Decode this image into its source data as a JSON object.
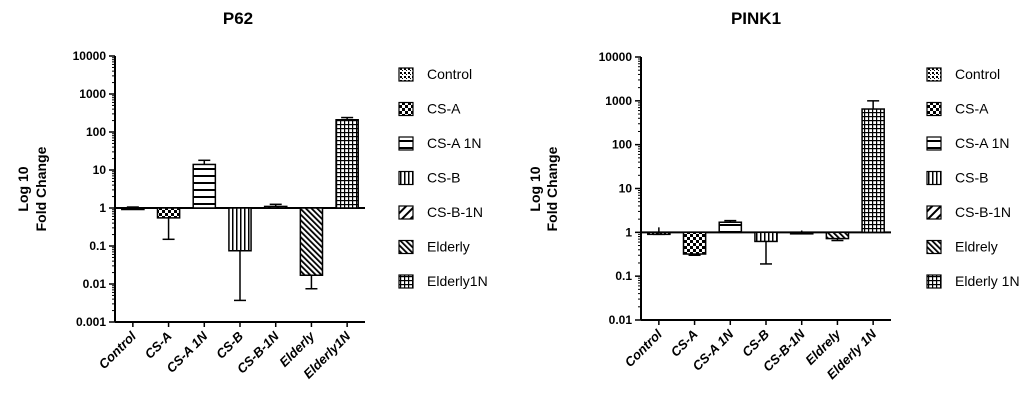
{
  "chart_data": [
    {
      "type": "bar",
      "title": "P62",
      "ylabel_lines": [
        "Log 10",
        "Fold Change"
      ],
      "yscale": "log",
      "ylim": [
        0.001,
        10000
      ],
      "yticks": [
        "0.001",
        "0.01",
        "0.1",
        "1",
        "10",
        "100",
        "1000",
        "10000"
      ],
      "categories": [
        "Control",
        "CS-A",
        "CS-A 1N",
        "CS-B",
        "CS-B-1N",
        "Elderly",
        "Elderly1N"
      ],
      "values": [
        1.0,
        0.55,
        14,
        0.075,
        1.1,
        0.017,
        210
      ],
      "error": [
        [
          1.0,
          1.06
        ],
        [
          0.15,
          0.55
        ],
        [
          14,
          18
        ],
        [
          0.0037,
          0.075
        ],
        [
          1.1,
          1.25
        ],
        [
          0.0075,
          0.017
        ],
        [
          210,
          240
        ]
      ],
      "legend": [
        "Control",
        "CS-A",
        "CS-A 1N",
        "CS-B",
        "CS-B-1N",
        "Elderly",
        "Elderly1N"
      ],
      "patterns": [
        "dots",
        "checker",
        "hlines-wide",
        "vlines",
        "diag",
        "diag-dense",
        "grid"
      ]
    },
    {
      "type": "bar",
      "title": "PINK1",
      "ylabel_lines": [
        "Log 10",
        "Fold Change"
      ],
      "yscale": "log",
      "ylim": [
        0.01,
        10000
      ],
      "yticks": [
        "0.01",
        "0.1",
        "1",
        "10",
        "100",
        "1000",
        "10000"
      ],
      "categories": [
        "Control",
        "CS-A",
        "CS-A 1N",
        "CS-B",
        "CS-B-1N",
        "Eldrely",
        "Elderly 1N"
      ],
      "values": [
        0.9,
        0.32,
        1.7,
        0.62,
        0.95,
        0.72,
        650
      ],
      "error": [
        [
          0.9,
          1.3
        ],
        [
          0.3,
          0.32
        ],
        [
          1.7,
          1.85
        ],
        [
          0.19,
          0.62
        ],
        [
          0.95,
          1.1
        ],
        [
          0.65,
          0.72
        ],
        [
          650,
          1000
        ]
      ],
      "legend": [
        "Control",
        "CS-A",
        "CS-A 1N",
        "CS-B",
        "CS-B-1N",
        "Eldrely",
        "Elderly 1N"
      ],
      "patterns": [
        "dots",
        "checker",
        "hlines-wide",
        "vlines",
        "diag",
        "diag-dense",
        "grid"
      ]
    }
  ]
}
